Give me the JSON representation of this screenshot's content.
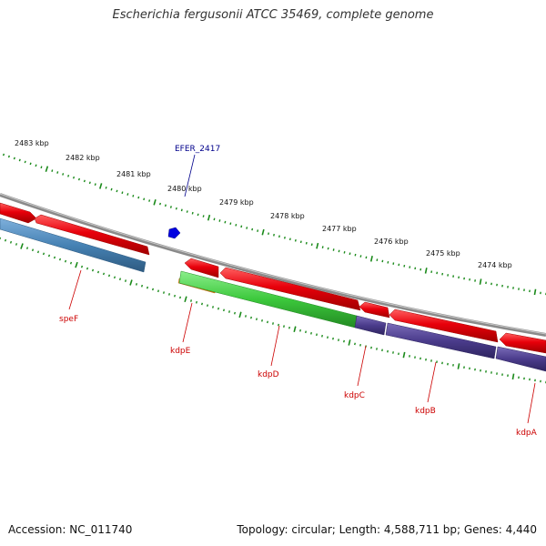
{
  "title": "Escherichia fergusonii ATCC 35469, complete genome",
  "accession": "Accession: NC_011740",
  "summary": "Topology: circular; Length: 4,588,711 bp; Genes: 4,440",
  "kbp_ticks": [
    "2483 kbp",
    "2482 kbp",
    "2481 kbp",
    "2480 kbp",
    "2479 kbp",
    "2478 kbp",
    "2477 kbp",
    "2476 kbp",
    "2475 kbp",
    "2474 kbp"
  ],
  "gene_labels": {
    "speF": "speF",
    "kdpE": "kdpE",
    "kdpD": "kdpD",
    "kdpC": "kdpC",
    "kdpB": "kdpB",
    "kdpA": "kdpA"
  },
  "feature_label": "EFER_2417",
  "colors": {
    "cds": "#e8000b",
    "backbone": "#8a8a8a",
    "tick": "#1a8a1a",
    "speF": "#4682b4",
    "kdpE": "#f08c00",
    "kdpD": "#3cc83c",
    "kdpCBA": "#4b3c8c",
    "feature": "#0000e0"
  }
}
